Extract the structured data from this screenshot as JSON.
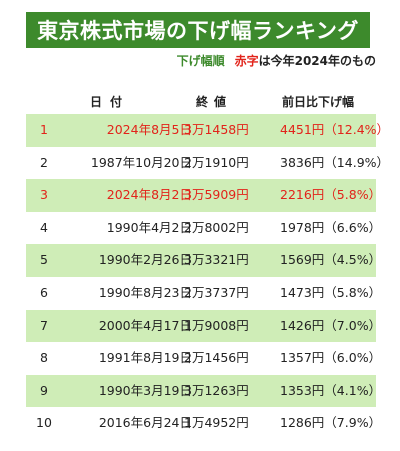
{
  "title": "東京株式市場の下げ幅ランキング",
  "subtitle": {
    "order": "下げ幅順",
    "red_label": "赤字",
    "rest": "は今年2024年のもの"
  },
  "headers": {
    "date": "日付",
    "value": "終値",
    "change": "前日比下げ幅"
  },
  "colors": {
    "title_bg": "#3d8a2c",
    "row_shade": "#cfedb7",
    "highlight_red": "#e2231a"
  },
  "rows": [
    {
      "rank": "1",
      "date": "2024年8月5日",
      "value": "3万1458円",
      "change": "4451円（12.4%）"
    },
    {
      "rank": "2",
      "date": "1987年10月20日",
      "value": "2万1910円",
      "change": "3836円（14.9%）"
    },
    {
      "rank": "3",
      "date": "2024年8月2日",
      "value": "3万5909円",
      "change": "2216円（5.8%）"
    },
    {
      "rank": "4",
      "date": "1990年4月2日",
      "value": "2万8002円",
      "change": "1978円（6.6%）"
    },
    {
      "rank": "5",
      "date": "1990年2月26日",
      "value": "3万3321円",
      "change": "1569円（4.5%）"
    },
    {
      "rank": "6",
      "date": "1990年8月23日",
      "value": "2万3737円",
      "change": "1473円（5.8%）"
    },
    {
      "rank": "7",
      "date": "2000年4月17日",
      "value": "1万9008円",
      "change": "1426円（7.0%）"
    },
    {
      "rank": "8",
      "date": "1991年8月19日",
      "value": "2万1456円",
      "change": "1357円（6.0%）"
    },
    {
      "rank": "9",
      "date": "1990年3月19日",
      "value": "3万1263円",
      "change": "1353円（4.1%）"
    },
    {
      "rank": "10",
      "date": "2016年6月24日",
      "value": "1万4952円",
      "change": "1286円（7.9%）"
    }
  ]
}
